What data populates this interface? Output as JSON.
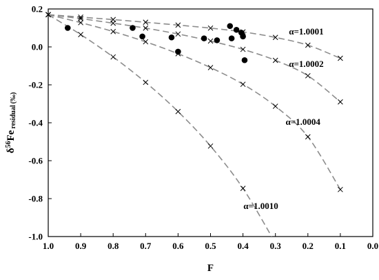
{
  "chart_data": {
    "type": "scatter",
    "xlabel": "F",
    "ylabel": {
      "delta": "δ",
      "superscript": "56",
      "element": "Fe",
      "subscript": "residual",
      "unit": "(‰)"
    },
    "xlim": [
      1.0,
      0.0
    ],
    "ylim": [
      -1.0,
      0.2
    ],
    "x_ticks": [
      "1.0",
      "0.9",
      "0.8",
      "0.7",
      "0.6",
      "0.5",
      "0.4",
      "0.3",
      "0.2",
      "0.1",
      "0.0"
    ],
    "y_ticks": [
      "0.2",
      "0.0",
      "-0.2",
      "-0.4",
      "-0.6",
      "-0.8",
      "-1.0"
    ],
    "grid": false,
    "series": [
      {
        "name": "α=1.0001",
        "marker": "x",
        "line": "dashed",
        "x": [
          1.0,
          0.9,
          0.8,
          0.7,
          0.6,
          0.5,
          0.4,
          0.3,
          0.2,
          0.1
        ],
        "y": [
          0.17,
          0.157,
          0.144,
          0.13,
          0.115,
          0.099,
          0.079,
          0.05,
          0.009,
          -0.06
        ]
      },
      {
        "name": "α=1.0002",
        "marker": "x",
        "line": "dashed",
        "x": [
          1.0,
          0.9,
          0.8,
          0.7,
          0.6,
          0.5,
          0.4,
          0.3,
          0.2,
          0.1
        ],
        "y": [
          0.17,
          0.149,
          0.125,
          0.099,
          0.068,
          0.031,
          -0.013,
          -0.071,
          -0.152,
          -0.29
        ]
      },
      {
        "name": "α=1.0004",
        "marker": "x",
        "line": "dashed",
        "x": [
          1.0,
          0.9,
          0.8,
          0.7,
          0.6,
          0.5,
          0.4,
          0.3,
          0.2,
          0.1
        ],
        "y": [
          0.17,
          0.128,
          0.081,
          0.027,
          -0.036,
          -0.109,
          -0.197,
          -0.313,
          -0.474,
          -0.752
        ]
      },
      {
        "name": "α=1.0010",
        "marker": "x",
        "line": "dashed",
        "x": [
          1.0,
          0.9,
          0.8,
          0.7,
          0.6,
          0.5,
          0.4,
          0.3
        ],
        "y": [
          0.17,
          0.065,
          -0.053,
          -0.187,
          -0.341,
          -0.523,
          -0.746,
          -1.034
        ]
      },
      {
        "name": "",
        "marker": "circle",
        "line": "none",
        "x": [
          0.94,
          0.74,
          0.71,
          0.62,
          0.6,
          0.52,
          0.48,
          0.44,
          0.435,
          0.42,
          0.405,
          0.4,
          0.395
        ],
        "y": [
          0.1,
          0.1,
          0.055,
          0.05,
          -0.025,
          0.045,
          0.035,
          0.11,
          0.045,
          0.09,
          0.075,
          0.055,
          -0.07
        ]
      }
    ],
    "curve_labels": [
      {
        "series": 0,
        "text": "α=1.0001",
        "x": 0.205,
        "y": 0.065
      },
      {
        "series": 1,
        "text": "α=1.0002",
        "x": 0.205,
        "y": -0.105
      },
      {
        "series": 2,
        "text": "α=1.0004",
        "x": 0.215,
        "y": -0.41
      },
      {
        "series": 3,
        "text": "α=1.0010",
        "x": 0.345,
        "y": -0.855
      }
    ]
  }
}
